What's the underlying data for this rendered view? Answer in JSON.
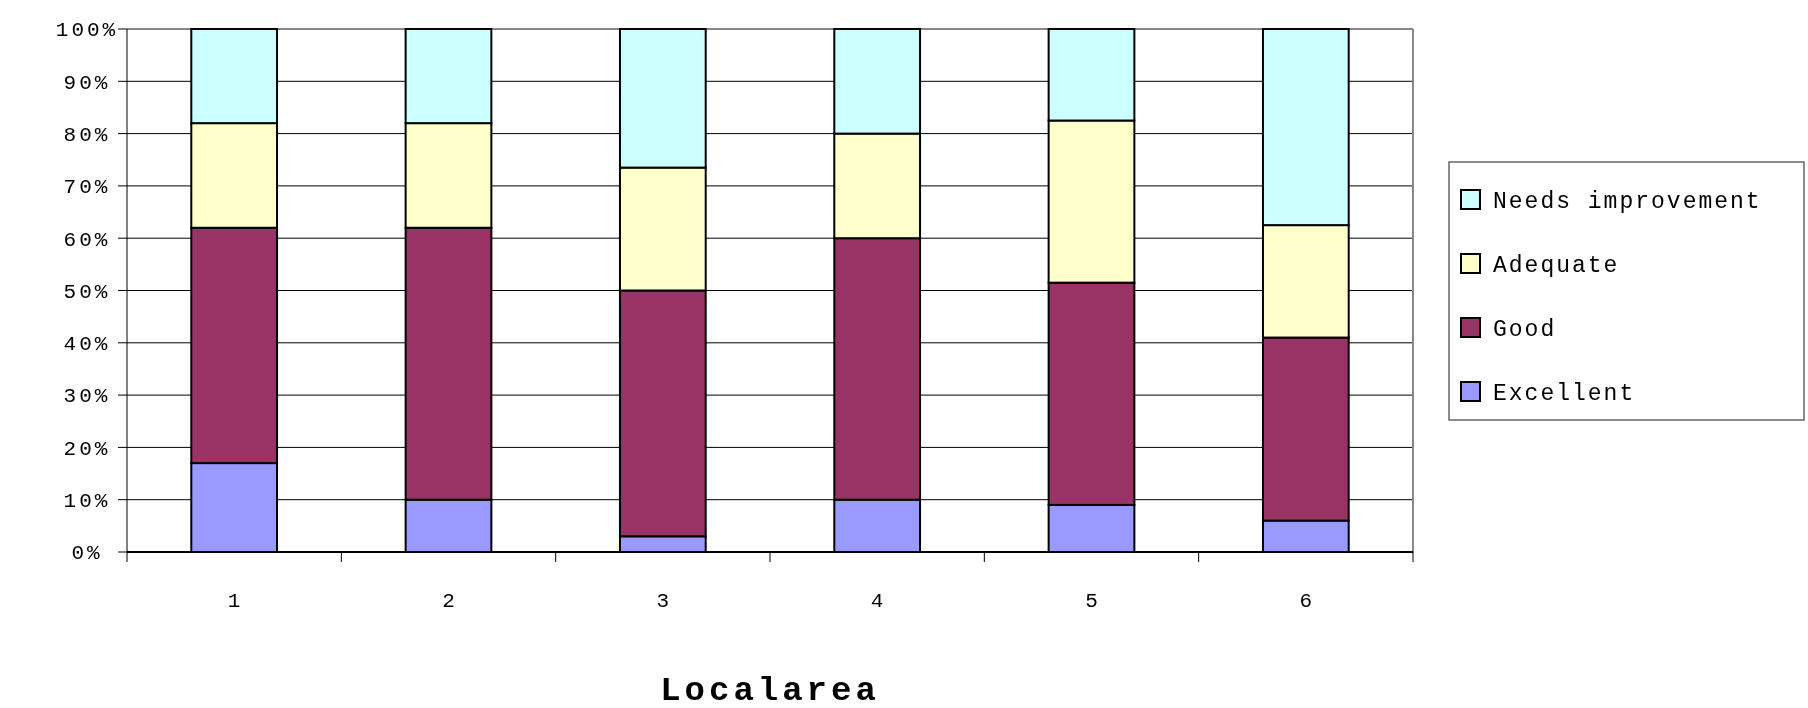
{
  "chart_data": {
    "type": "bar",
    "stacked": true,
    "xlabel": "Localarea",
    "categories": [
      "1",
      "2",
      "3",
      "4",
      "5",
      "6"
    ],
    "series": [
      {
        "name": "Excellent",
        "color": "#9999ff",
        "values": [
          17,
          10,
          3,
          10,
          9,
          6
        ]
      },
      {
        "name": "Good",
        "color": "#993366",
        "values": [
          45,
          52,
          47,
          50,
          42.5,
          35
        ]
      },
      {
        "name": "Adequate",
        "color": "#ffffcc",
        "values": [
          20,
          20,
          23.5,
          20,
          31,
          21.5
        ]
      },
      {
        "name": "Needs improvement",
        "color": "#ccffff",
        "values": [
          18,
          18,
          26.5,
          20,
          17.5,
          37.5
        ]
      }
    ],
    "ylim": [
      0,
      100
    ],
    "yticks": [
      {
        "value": 0,
        "label": "0%"
      },
      {
        "value": 10,
        "label": "10%"
      },
      {
        "value": 20,
        "label": "20%"
      },
      {
        "value": 30,
        "label": "30%"
      },
      {
        "value": 40,
        "label": "40%"
      },
      {
        "value": 50,
        "label": "50%"
      },
      {
        "value": 60,
        "label": "60%"
      },
      {
        "value": 70,
        "label": "70%"
      },
      {
        "value": 80,
        "label": "80%"
      },
      {
        "value": 90,
        "label": "90%"
      },
      {
        "value": 100,
        "label": "100%"
      }
    ],
    "grid": "y",
    "legend": "right"
  }
}
